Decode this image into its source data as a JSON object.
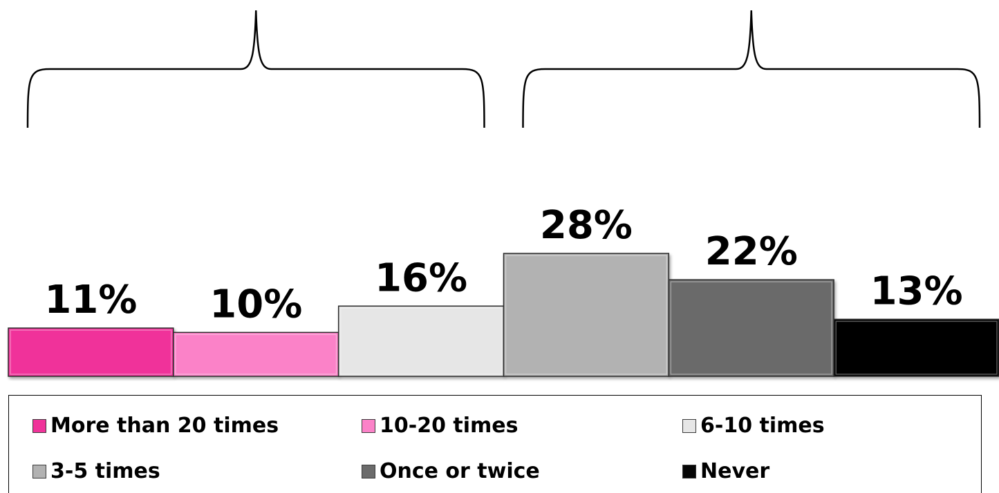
{
  "chart_data": {
    "type": "bar",
    "categories": [
      "More than 20 times",
      "10-20 times",
      "6-10 times",
      "3-5 times",
      "Once or twice",
      "Never"
    ],
    "values": [
      11,
      10,
      16,
      28,
      22,
      13
    ],
    "data_labels": [
      "11%",
      "10%",
      "16%",
      "28%",
      "22%",
      "13%"
    ],
    "colors": [
      "#f0339a",
      "#fb82c8",
      "#e6e6e6",
      "#b2b2b2",
      "#6b6b6b",
      "#060606"
    ],
    "unit": "%",
    "ylim": [
      0,
      28
    ],
    "grid": false,
    "gap_width": 0,
    "brackets": [
      {
        "start_category": 0,
        "end_category": 2
      },
      {
        "start_category": 3,
        "end_category": 5
      }
    ],
    "legend": {
      "placement": "bottom",
      "columns": 3,
      "entries": [
        "More than 20 times",
        "10-20 times",
        "6-10 times",
        "3-5 times",
        "Once or twice",
        "Never"
      ]
    }
  }
}
